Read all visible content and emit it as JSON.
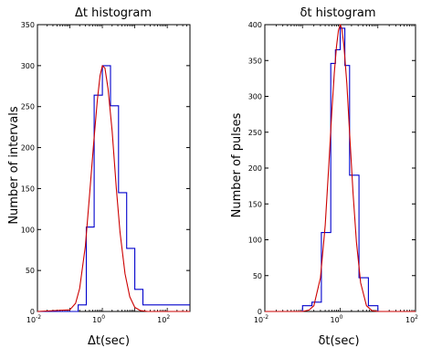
{
  "chart_data": [
    {
      "type": "line",
      "title": "Δt histogram",
      "xlabel": "Δt(sec)",
      "ylabel": "Number of intervals",
      "xscale": "log",
      "xlim": [
        0.01,
        500
      ],
      "ylim": [
        0,
        350
      ],
      "xticks": [
        {
          "base": "10",
          "exp": "-2"
        },
        {
          "base": "10",
          "exp": "0"
        },
        {
          "base": "10",
          "exp": "2"
        }
      ],
      "yticks": [
        "0",
        "50",
        "100",
        "150",
        "200",
        "250",
        "300",
        "350"
      ],
      "series": [
        {
          "style": "step",
          "color": "#0000cc",
          "x": [
            0.01,
            0.1,
            0.18,
            0.32,
            0.56,
            1.0,
            1.78,
            3.16,
            5.62,
            10.0,
            17.8,
            500
          ],
          "values": [
            0,
            0,
            8,
            103,
            264,
            300,
            251,
            145,
            77,
            27,
            8,
            0
          ]
        },
        {
          "style": "curve",
          "color": "#cc0000",
          "x": [
            0.01,
            0.1,
            0.15,
            0.2,
            0.3,
            0.4,
            0.55,
            0.7,
            0.85,
            1.0,
            1.2,
            1.5,
            2.0,
            2.7,
            3.5,
            5.0,
            7.0,
            10.0,
            15.0,
            25.0,
            50.0,
            500
          ],
          "values": [
            0,
            2,
            10,
            28,
            80,
            140,
            210,
            258,
            288,
            300,
            297,
            272,
            220,
            150,
            97,
            46,
            18,
            5,
            1,
            0,
            0,
            0
          ]
        }
      ]
    },
    {
      "type": "line",
      "title": "δt histogram",
      "xlabel": "δt(sec)",
      "ylabel": "Number of pulses",
      "xscale": "log",
      "xlim": [
        0.01,
        100
      ],
      "ylim": [
        0,
        400
      ],
      "xticks": [
        {
          "base": "10",
          "exp": "-2"
        },
        {
          "base": "10",
          "exp": "0"
        },
        {
          "base": "10",
          "exp": "2"
        }
      ],
      "yticks": [
        "0",
        "50",
        "100",
        "150",
        "200",
        "250",
        "300",
        "350",
        "400"
      ],
      "series": [
        {
          "style": "step",
          "color": "#0000cc",
          "x": [
            0.01,
            0.056,
            0.1,
            0.178,
            0.316,
            0.562,
            0.75,
            1.0,
            1.33,
            1.78,
            3.16,
            5.62,
            10.0,
            100
          ],
          "values": [
            0,
            0,
            8,
            13,
            110,
            346,
            365,
            395,
            343,
            190,
            47,
            8,
            0,
            0
          ]
        },
        {
          "style": "curve",
          "color": "#cc0000",
          "x": [
            0.01,
            0.1,
            0.15,
            0.2,
            0.3,
            0.4,
            0.5,
            0.6,
            0.7,
            0.8,
            0.9,
            1.0,
            1.1,
            1.25,
            1.5,
            1.8,
            2.2,
            2.7,
            3.5,
            5.0,
            7.0,
            10.0,
            100
          ],
          "values": [
            0,
            0,
            2,
            8,
            47,
            120,
            205,
            278,
            333,
            370,
            392,
            400,
            395,
            372,
            318,
            245,
            165,
            97,
            40,
            8,
            1,
            0,
            0
          ]
        }
      ]
    }
  ]
}
